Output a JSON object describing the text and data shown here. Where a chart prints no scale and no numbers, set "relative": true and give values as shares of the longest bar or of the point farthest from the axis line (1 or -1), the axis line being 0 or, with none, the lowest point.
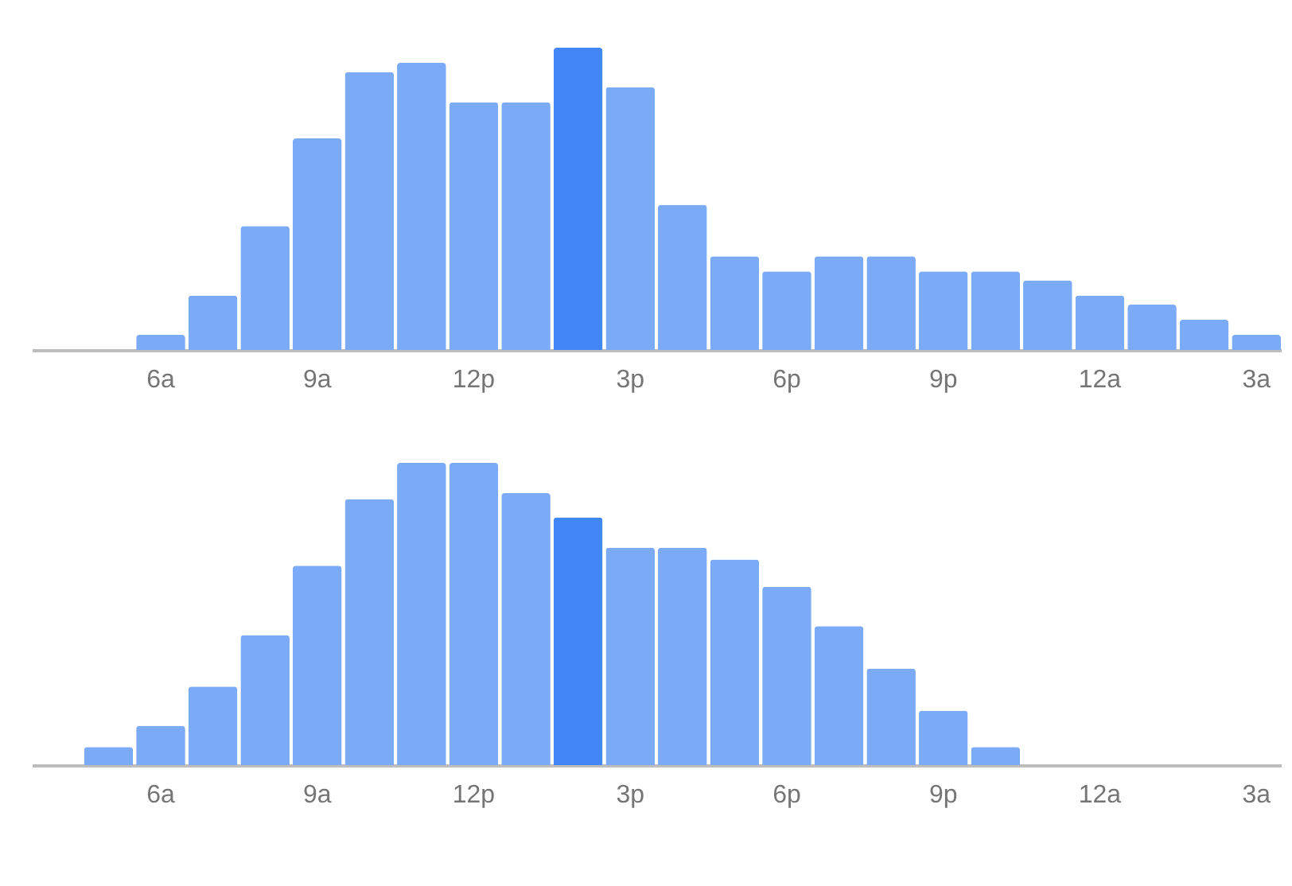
{
  "chart_data": [
    {
      "type": "bar",
      "relative": true,
      "categories": [
        null,
        null,
        "6a",
        null,
        null,
        "9a",
        null,
        null,
        "12p",
        null,
        null,
        "3p",
        null,
        null,
        "6p",
        null,
        null,
        "9p",
        null,
        null,
        "12a",
        null,
        null,
        "3a"
      ],
      "values": [
        0,
        0,
        0.05,
        0.18,
        0.41,
        0.7,
        0.92,
        0.95,
        0.82,
        0.82,
        1,
        0.87,
        0.48,
        0.31,
        0.26,
        0.31,
        0.31,
        0.26,
        0.26,
        0.23,
        0.18,
        0.15,
        0.1,
        0.05
      ],
      "colors": [
        "#7baaf7",
        "#7baaf7",
        "#7baaf7",
        "#7baaf7",
        "#7baaf7",
        "#7baaf7",
        "#7baaf7",
        "#7baaf7",
        "#7baaf7",
        "#7baaf7",
        "#4285f4",
        "#7baaf7",
        "#7baaf7",
        "#7baaf7",
        "#7baaf7",
        "#7baaf7",
        "#7baaf7",
        "#7baaf7",
        "#7baaf7",
        "#7baaf7",
        "#7baaf7",
        "#7baaf7",
        "#7baaf7",
        "#7baaf7"
      ]
    },
    {
      "type": "bar",
      "relative": true,
      "categories": [
        null,
        null,
        "6a",
        null,
        null,
        "9a",
        null,
        null,
        "12p",
        null,
        null,
        "3p",
        null,
        null,
        "6p",
        null,
        null,
        "9p",
        null,
        null,
        "12a",
        null,
        null,
        "3a"
      ],
      "values": [
        0,
        0.06,
        0.13,
        0.26,
        0.43,
        0.66,
        0.88,
        1,
        1,
        0.9,
        0.82,
        0.72,
        0.72,
        0.68,
        0.59,
        0.46,
        0.32,
        0.18,
        0.06,
        0,
        0,
        0,
        0,
        0
      ],
      "colors": [
        "#7baaf7",
        "#7baaf7",
        "#7baaf7",
        "#7baaf7",
        "#7baaf7",
        "#7baaf7",
        "#7baaf7",
        "#7baaf7",
        "#7baaf7",
        "#7baaf7",
        "#4285f4",
        "#7baaf7",
        "#7baaf7",
        "#7baaf7",
        "#7baaf7",
        "#7baaf7",
        "#7baaf7",
        "#7baaf7",
        "#7baaf7",
        "#7baaf7",
        "#7baaf7",
        "#7baaf7",
        "#7baaf7",
        "#7baaf7"
      ]
    }
  ]
}
